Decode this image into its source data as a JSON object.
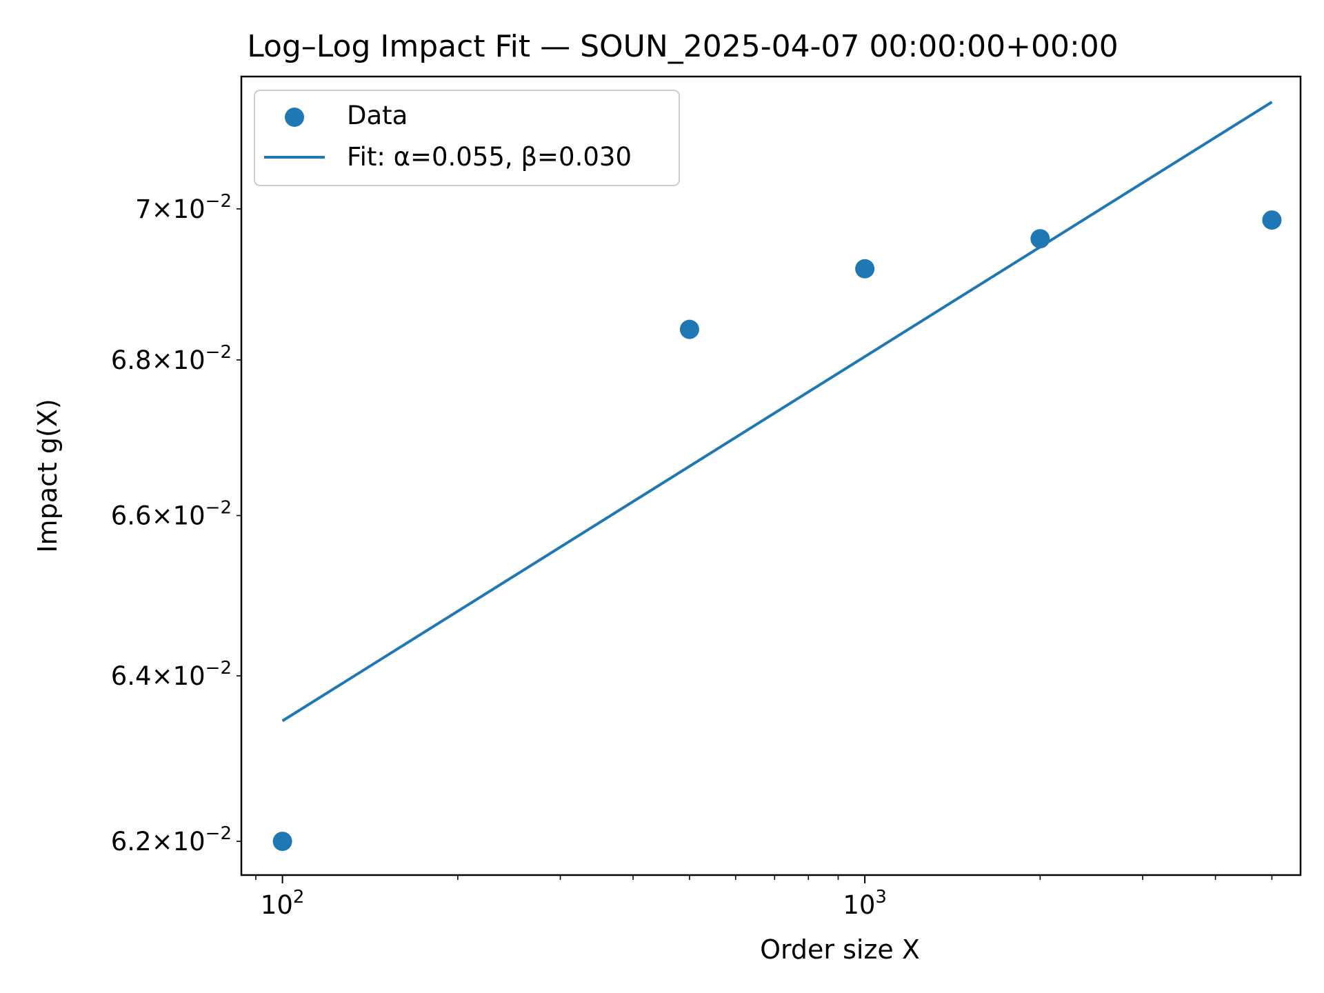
{
  "chart_data": {
    "type": "scatter",
    "title": "Log–Log Impact Fit — SOUN_2025-04-07 00:00:00+00:00",
    "xlabel": "Order size X",
    "ylabel": "Impact g(X)",
    "xscale": "log",
    "yscale": "log",
    "xlim": [
      85,
      5600
    ],
    "ylim": [
      0.0616,
      0.0718
    ],
    "x_ticks": [
      {
        "value": 100,
        "mantissa": "",
        "exp": "2"
      },
      {
        "value": 1000,
        "mantissa": "",
        "exp": "3"
      }
    ],
    "y_ticks": [
      {
        "value": 0.062,
        "mantissa": "6.2",
        "exp": "−2"
      },
      {
        "value": 0.064,
        "mantissa": "6.4",
        "exp": "−2"
      },
      {
        "value": 0.066,
        "mantissa": "6.6",
        "exp": "−2"
      },
      {
        "value": 0.068,
        "mantissa": "6.8",
        "exp": "−2"
      },
      {
        "value": 0.07,
        "mantissa": "7",
        "exp": "−2"
      }
    ],
    "grid": false,
    "legend_position": "top-left",
    "series": [
      {
        "name": "Data",
        "kind": "scatter",
        "color": "#1f77b4",
        "x": [
          100,
          500,
          1000,
          2000,
          5000
        ],
        "y": [
          0.062,
          0.0684,
          0.0692,
          0.0696,
          0.06985
        ]
      },
      {
        "name": "Fit: α=0.055, β=0.030",
        "kind": "line",
        "color": "#1f77b4",
        "x": [
          100,
          5000
        ],
        "y": [
          0.06345,
          0.07145
        ]
      }
    ]
  }
}
